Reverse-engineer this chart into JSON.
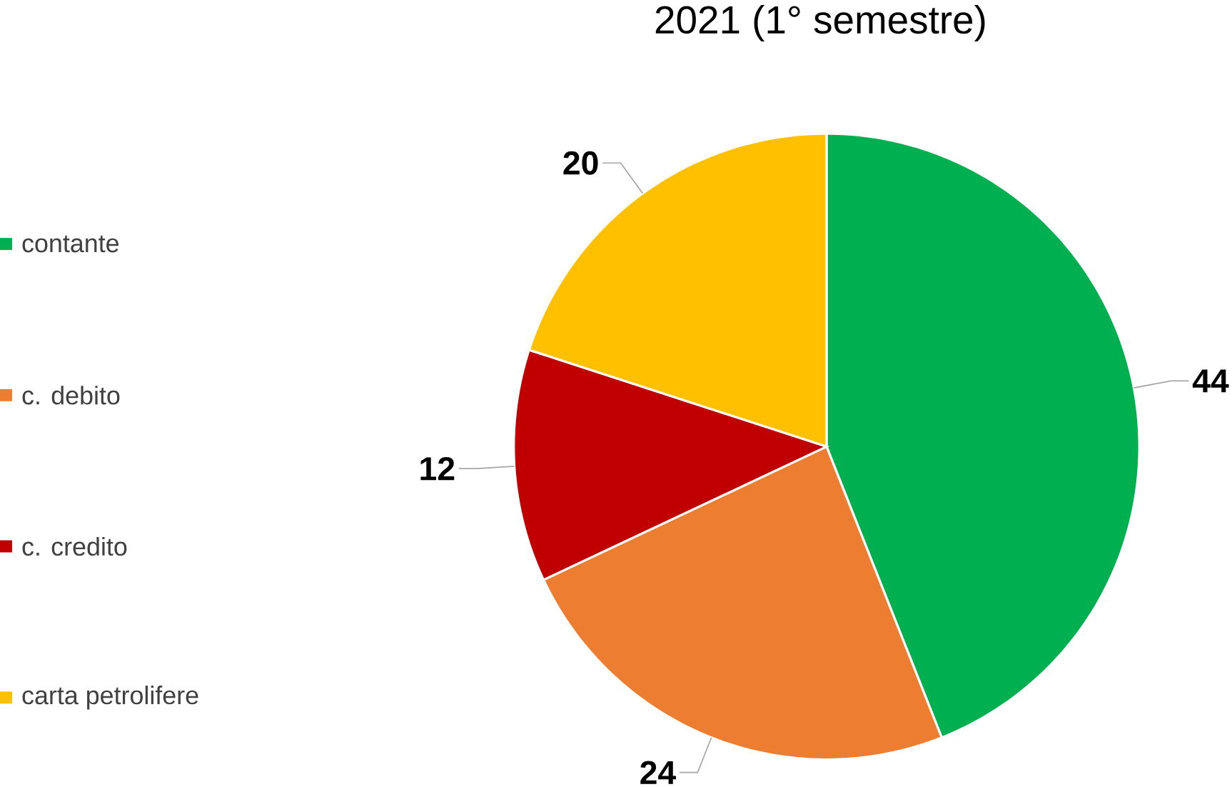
{
  "chart_data": {
    "type": "pie",
    "title": "2021 (1° semestre)",
    "categories": [
      "contante",
      "c. debito",
      "c. credito",
      "carta petrolifere"
    ],
    "values": [
      44,
      24,
      12,
      20
    ],
    "colors": [
      "#00b050",
      "#ed7d31",
      "#c00000",
      "#ffc000"
    ],
    "legend": "left",
    "data_labels": true
  }
}
